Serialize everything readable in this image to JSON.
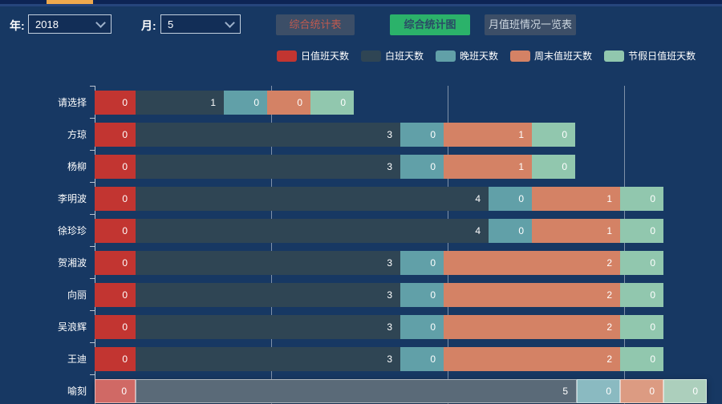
{
  "window": {
    "background": "#173863",
    "active_tab_indicator_color": "#efa94d"
  },
  "toolbar": {
    "year_label": "年:",
    "year_value": "2018",
    "month_label": "月:",
    "month_value": "5",
    "buttons": [
      {
        "label": "综合统计表",
        "active": false,
        "text_color": "#bf5a50",
        "bg": "#3c4e67"
      },
      {
        "label": "综合统计图",
        "active": true,
        "text_color": "#2a4a66",
        "bg": "#2bb26a"
      },
      {
        "label": "月值班情况一览表",
        "active": false,
        "text_color": "#ccd6df",
        "bg": "#3c4e67"
      }
    ]
  },
  "chart_data": {
    "type": "bar",
    "orientation": "horizontal",
    "stacked": true,
    "title": "",
    "xlabel": "",
    "ylabel": "",
    "legend_position": "top",
    "grid": true,
    "xlim": [
      0,
      7
    ],
    "grid_tick_values": [
      2,
      4,
      6
    ],
    "value_labels": "inside-right",
    "categories": [
      "请选择",
      "方琼",
      "杨柳",
      "李明波",
      "徐珍珍",
      "贺湘波",
      "向丽",
      "吴浪辉",
      "王迪",
      "喻刻"
    ],
    "series": [
      {
        "name": "日值班天数",
        "color": "#c23531",
        "muted_color": "#d06965",
        "values": [
          0,
          0,
          0,
          0,
          0,
          0,
          0,
          0,
          0,
          0
        ]
      },
      {
        "name": "白班天数",
        "color": "#2f4554",
        "muted_color": "#5a6a78",
        "values": [
          1,
          3,
          3,
          4,
          4,
          3,
          3,
          3,
          3,
          5
        ]
      },
      {
        "name": "晚班天数",
        "color": "#61a0a8",
        "muted_color": "#8abac1",
        "values": [
          0,
          0,
          0,
          0,
          0,
          0,
          0,
          0,
          0,
          0
        ]
      },
      {
        "name": "周末值班天数",
        "color": "#d48265",
        "muted_color": "#dc9b82",
        "values": [
          0,
          1,
          1,
          1,
          1,
          2,
          2,
          2,
          2,
          0
        ]
      },
      {
        "name": "节假日值班天数",
        "color": "#91c7ae",
        "muted_color": "#accfbc",
        "values": [
          0,
          0,
          0,
          0,
          0,
          0,
          0,
          0,
          0,
          0
        ]
      }
    ],
    "highlighted_category": "喻刻"
  }
}
